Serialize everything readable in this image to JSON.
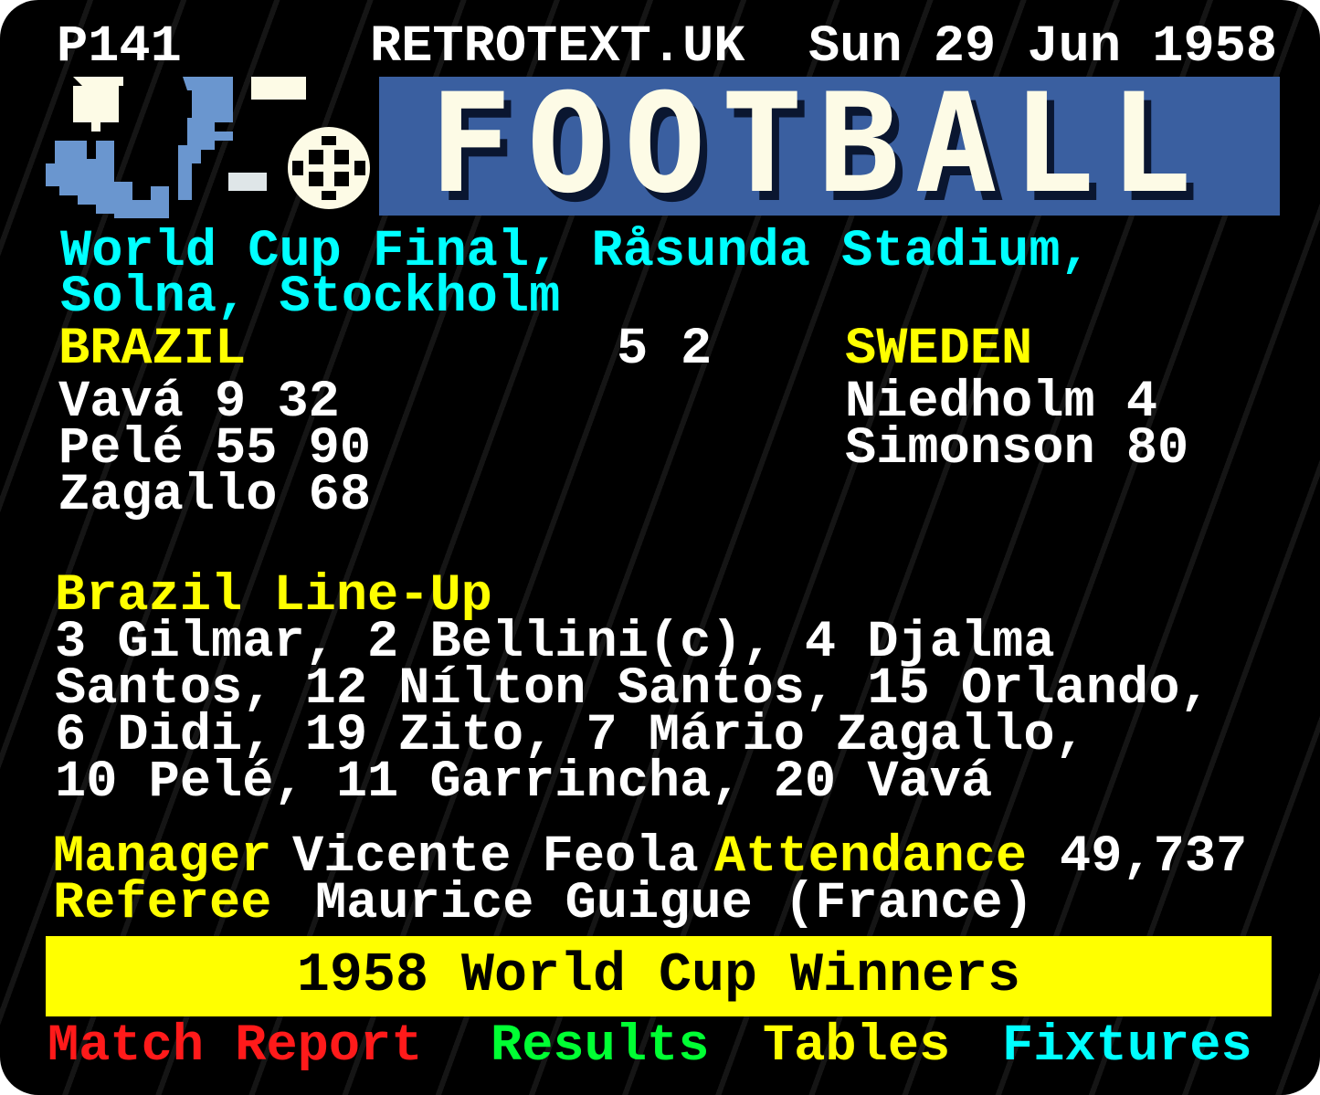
{
  "header": {
    "page": "P141",
    "site": "RETROTEXT.UK",
    "date": "Sun 29 Jun 1958"
  },
  "banner": {
    "title": "FOOTBALL",
    "icons": [
      "player-graphic-icon",
      "football-icon"
    ]
  },
  "venue": {
    "line1": "World Cup Final, Råsunda Stadium,",
    "line2": "Solna, Stockholm"
  },
  "match": {
    "home": {
      "team": "BRAZIL",
      "score": "5",
      "scorers": [
        "Vavá 9 32",
        "Pelé 55 90",
        "Zagallo 68"
      ]
    },
    "away": {
      "team": "SWEDEN",
      "score": "2",
      "scorers": [
        "Niedholm 4",
        "Simonson 80"
      ]
    }
  },
  "lineup": {
    "heading": "Brazil Line-Up",
    "lines": [
      "3 Gilmar, 2 Bellini(c), 4 Djalma",
      "Santos, 12 Nílton Santos, 15 Orlando,",
      "6 Didi, 19 Zito, 7 Mário Zagallo,",
      "10 Pelé, 11 Garrincha, 20 Vavá"
    ]
  },
  "info": {
    "manager_label": "Manager",
    "manager": "Vicente Feola",
    "attendance_label": "Attendance",
    "attendance": "49,737",
    "referee_label": "Referee",
    "referee": "Maurice Guigue (France)"
  },
  "highlight": "1958 World Cup Winners",
  "footer": {
    "links": [
      {
        "label": "Match Report",
        "color": "#ff1a1a"
      },
      {
        "label": "Results",
        "color": "#00ff33"
      },
      {
        "label": "Tables",
        "color": "#ffff00"
      },
      {
        "label": "Fixtures",
        "color": "#00ffff"
      }
    ]
  },
  "watermark": "RETROTEXT.UK"
}
